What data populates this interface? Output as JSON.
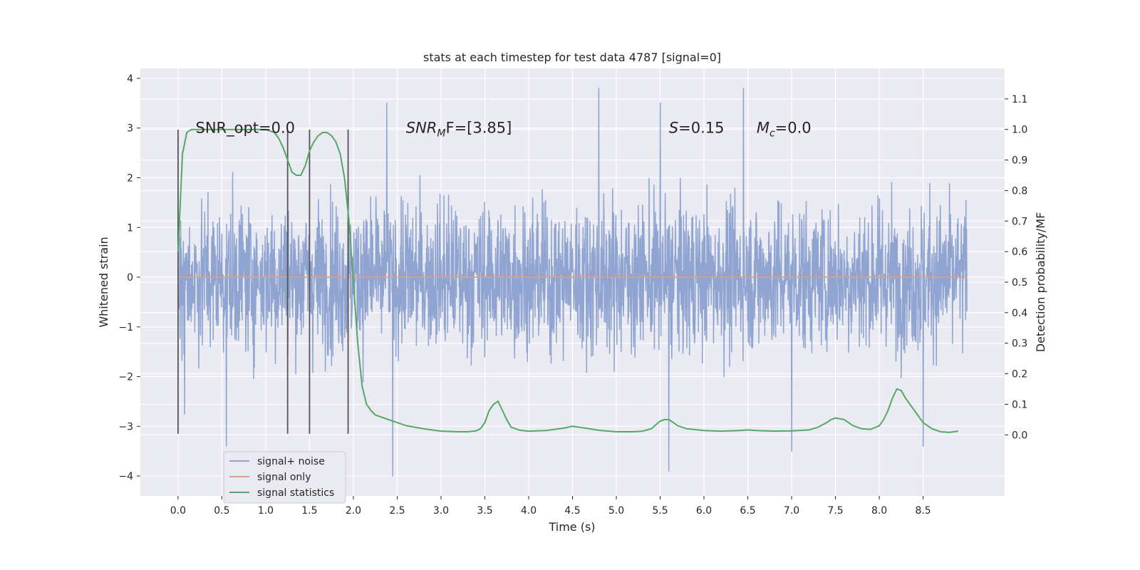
{
  "chart_data": {
    "type": "line",
    "title": "stats at each timestep for test data 4787 [signal=0]",
    "xlabel": "Time (s)",
    "ylabel_left": "Whitened strain",
    "ylabel_right": "Detection probability/MF",
    "xlim": [
      -0.43,
      9.43
    ],
    "ylim_left": [
      -4.4,
      4.2
    ],
    "ylim_right": [
      -0.2,
      1.2
    ],
    "x_ticks": [
      0.0,
      0.5,
      1.0,
      1.5,
      2.0,
      2.5,
      3.0,
      3.5,
      4.0,
      4.5,
      5.0,
      5.5,
      6.0,
      6.5,
      7.0,
      7.5,
      8.0,
      8.5
    ],
    "x_tick_labels": [
      "0.0",
      "0.5",
      "1.0",
      "1.5",
      "2.0",
      "2.5",
      "3.0",
      "3.5",
      "4.0",
      "4.5",
      "5.0",
      "5.5",
      "6.0",
      "6.5",
      "7.0",
      "7.5",
      "8.0",
      "8.5"
    ],
    "y_left_ticks": [
      -4,
      -3,
      -2,
      -1,
      0,
      1,
      2,
      3,
      4
    ],
    "y_left_tick_labels": [
      "−4",
      "−3",
      "−2",
      "−1",
      "0",
      "1",
      "2",
      "3",
      "4"
    ],
    "y_right_ticks": [
      0.0,
      0.1,
      0.2,
      0.3,
      0.4,
      0.5,
      0.6,
      0.7,
      0.8,
      0.9,
      1.0,
      1.1
    ],
    "y_right_tick_labels": [
      "0.0",
      "0.1",
      "0.2",
      "0.3",
      "0.4",
      "0.5",
      "0.6",
      "0.7",
      "0.8",
      "0.9",
      "1.0",
      "1.1"
    ],
    "grid": true,
    "legend_position": "lower-left",
    "series": [
      {
        "name": "signal+ noise",
        "axis": "left",
        "color": "#8fa4d1",
        "x_range": [
          0.0,
          9.0
        ],
        "y_range": [
          -4.0,
          3.8
        ],
        "peaks": [
          {
            "x": 0.55,
            "y": -3.4
          },
          {
            "x": 2.45,
            "y": -4.0
          },
          {
            "x": 2.38,
            "y": 3.5
          },
          {
            "x": 4.8,
            "y": 3.8
          },
          {
            "x": 5.5,
            "y": 3.5
          },
          {
            "x": 5.6,
            "y": -3.9
          },
          {
            "x": 6.45,
            "y": 3.8
          },
          {
            "x": 7.0,
            "y": -3.5
          },
          {
            "x": 8.5,
            "y": -3.4
          }
        ]
      },
      {
        "name": "signal only",
        "axis": "left",
        "color": "#dd9f87",
        "x": [
          0.0,
          9.0
        ],
        "y": [
          0.0,
          0.0
        ]
      },
      {
        "name": "signal statistics",
        "axis": "right",
        "color": "#55a868",
        "x": [
          0.0,
          0.05,
          0.1,
          0.15,
          0.2,
          0.3,
          0.4,
          0.5,
          0.6,
          0.7,
          0.8,
          0.9,
          1.0,
          1.1,
          1.15,
          1.2,
          1.25,
          1.3,
          1.35,
          1.4,
          1.45,
          1.5,
          1.55,
          1.6,
          1.65,
          1.7,
          1.75,
          1.8,
          1.85,
          1.9,
          1.95,
          2.0,
          2.05,
          2.1,
          2.15,
          2.2,
          2.25,
          2.3,
          2.4,
          2.5,
          2.6,
          2.8,
          3.0,
          3.2,
          3.3,
          3.4,
          3.45,
          3.5,
          3.55,
          3.6,
          3.65,
          3.7,
          3.75,
          3.8,
          3.9,
          4.0,
          4.2,
          4.4,
          4.5,
          4.6,
          4.8,
          5.0,
          5.2,
          5.3,
          5.4,
          5.5,
          5.55,
          5.6,
          5.65,
          5.7,
          5.8,
          6.0,
          6.2,
          6.4,
          6.5,
          6.6,
          6.8,
          7.0,
          7.2,
          7.3,
          7.4,
          7.45,
          7.5,
          7.6,
          7.7,
          7.8,
          7.9,
          8.0,
          8.05,
          8.1,
          8.15,
          8.2,
          8.25,
          8.3,
          8.4,
          8.5,
          8.6,
          8.7,
          8.8,
          8.9
        ],
        "y": [
          0.6,
          0.92,
          0.99,
          1.0,
          1.0,
          1.0,
          1.0,
          1.0,
          1.0,
          1.0,
          1.0,
          1.0,
          1.0,
          0.99,
          0.97,
          0.94,
          0.9,
          0.86,
          0.85,
          0.85,
          0.88,
          0.93,
          0.96,
          0.98,
          0.99,
          0.99,
          0.98,
          0.96,
          0.92,
          0.84,
          0.7,
          0.5,
          0.3,
          0.16,
          0.1,
          0.08,
          0.065,
          0.06,
          0.05,
          0.04,
          0.03,
          0.02,
          0.012,
          0.01,
          0.01,
          0.013,
          0.02,
          0.04,
          0.08,
          0.1,
          0.11,
          0.08,
          0.05,
          0.025,
          0.015,
          0.012,
          0.014,
          0.022,
          0.028,
          0.024,
          0.015,
          0.01,
          0.01,
          0.012,
          0.02,
          0.045,
          0.05,
          0.05,
          0.04,
          0.03,
          0.02,
          0.014,
          0.012,
          0.014,
          0.016,
          0.014,
          0.012,
          0.013,
          0.016,
          0.025,
          0.04,
          0.05,
          0.055,
          0.05,
          0.03,
          0.02,
          0.018,
          0.03,
          0.05,
          0.08,
          0.12,
          0.15,
          0.145,
          0.12,
          0.08,
          0.04,
          0.02,
          0.01,
          0.008,
          0.012
        ]
      }
    ],
    "vertical_markers": {
      "color": "#555555",
      "x": [
        0.0,
        1.25,
        1.5,
        1.94
      ],
      "y_range": [
        -3.15,
        2.97
      ]
    },
    "annotations": [
      {
        "text": "SNR_opt=0.0",
        "x": 0.2,
        "y": 2.9
      },
      {
        "text_italic": "SNR",
        "sub": "M",
        "text_rest": "F=[3.85]",
        "x": 2.6,
        "y": 2.9
      },
      {
        "text_italic": "S",
        "text_rest": "=0.15",
        "x": 5.6,
        "y": 2.9
      },
      {
        "text_italic": "M",
        "sub": "c",
        "text_rest": "=0.0",
        "x": 6.6,
        "y": 2.9
      }
    ]
  }
}
